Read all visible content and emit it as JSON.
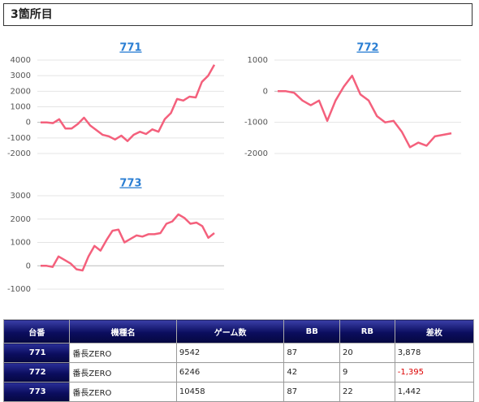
{
  "header": {
    "title": "3箇所目"
  },
  "chart_data": [
    {
      "type": "line",
      "title": "771",
      "color": "#f4607c",
      "grid": true,
      "values": [
        0,
        0,
        -50,
        200,
        -400,
        -400,
        -100,
        300,
        -200,
        -500,
        -800,
        -900,
        -1100,
        -850,
        -1200,
        -800,
        -600,
        -750,
        -450,
        -600,
        200,
        600,
        1500,
        1400,
        1650,
        1600,
        2600,
        3000,
        3700
      ],
      "ylim": [
        -2000,
        4000
      ],
      "yticks": [
        -2000,
        -1000,
        0,
        1000,
        2000,
        3000,
        4000
      ]
    },
    {
      "type": "line",
      "title": "772",
      "color": "#f4607c",
      "grid": true,
      "values": [
        0,
        0,
        -50,
        -300,
        -450,
        -300,
        -950,
        -300,
        150,
        500,
        -100,
        -300,
        -800,
        -1000,
        -950,
        -1300,
        -1800,
        -1650,
        -1750,
        -1450,
        -1400,
        -1350
      ],
      "ylim": [
        -2000,
        1000
      ],
      "yticks": [
        -2000,
        -1000,
        0,
        1000
      ]
    },
    {
      "type": "line",
      "title": "773",
      "color": "#f4607c",
      "grid": true,
      "values": [
        0,
        0,
        -50,
        400,
        250,
        100,
        -150,
        -200,
        400,
        850,
        650,
        1100,
        1500,
        1550,
        1000,
        1150,
        1300,
        1250,
        1350,
        1350,
        1400,
        1800,
        1900,
        2200,
        2050,
        1800,
        1850,
        1700,
        1200,
        1400
      ],
      "ylim": [
        -1000,
        3000
      ],
      "yticks": [
        -1000,
        0,
        1000,
        2000,
        3000
      ]
    }
  ],
  "table": {
    "header": [
      "台番",
      "機種名",
      "ゲーム数",
      "BB",
      "RB",
      "差枚"
    ],
    "rows": [
      [
        "771",
        "番長ZERO",
        "9542",
        "87",
        "20",
        "3,878"
      ],
      [
        "772",
        "番長ZERO",
        "6246",
        "42",
        "9",
        "-1,395"
      ],
      [
        "773",
        "番長ZERO",
        "10458",
        "87",
        "22",
        "1,442"
      ]
    ]
  }
}
